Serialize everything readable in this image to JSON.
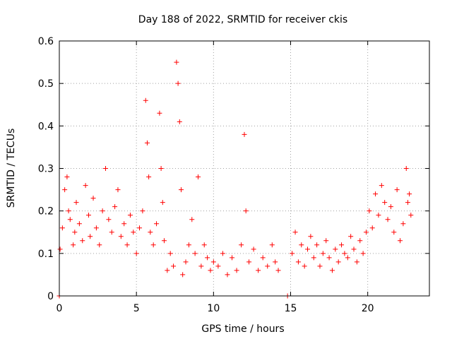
{
  "chart_data": {
    "type": "scatter",
    "title": "Day 188 of 2022, SRMTID for receiver ckis",
    "xlabel": "GPS time / hours",
    "ylabel": "SRMTID / TECUs",
    "xlim": [
      0,
      24
    ],
    "ylim": [
      0,
      0.6
    ],
    "grid": true,
    "marker": "+",
    "x_ticks": [
      0,
      5,
      10,
      15,
      20
    ],
    "x_tick_labels": [
      "0",
      "5",
      "10",
      "15",
      "20"
    ],
    "y_ticks": [
      0,
      0.1,
      0.2,
      0.3,
      0.4,
      0.5,
      0.6
    ],
    "y_tick_labels": [
      "0",
      "0.1",
      "0.2",
      "0.3",
      "0.4",
      "0.5",
      "0.6"
    ],
    "series": [
      {
        "name": "SRMTID",
        "color": "#ff0000",
        "x": [
          0.0,
          0.05,
          0.2,
          0.35,
          0.5,
          0.6,
          0.7,
          0.9,
          1.0,
          1.1,
          1.3,
          1.5,
          1.7,
          1.9,
          2.0,
          2.2,
          2.4,
          2.6,
          2.8,
          3.0,
          3.2,
          3.4,
          3.6,
          3.8,
          4.0,
          4.2,
          4.4,
          4.6,
          4.8,
          5.0,
          5.2,
          5.4,
          5.6,
          5.7,
          5.8,
          5.9,
          6.1,
          6.3,
          6.5,
          6.6,
          6.7,
          6.8,
          7.0,
          7.2,
          7.4,
          7.6,
          7.7,
          7.8,
          7.9,
          8.0,
          8.2,
          8.4,
          8.6,
          8.8,
          9.0,
          9.2,
          9.4,
          9.6,
          9.8,
          10.0,
          10.3,
          10.6,
          10.9,
          11.2,
          11.5,
          11.8,
          12.0,
          12.1,
          12.3,
          12.6,
          12.9,
          13.2,
          13.5,
          13.8,
          14.0,
          14.2,
          14.8,
          15.1,
          15.3,
          15.5,
          15.7,
          15.9,
          16.1,
          16.3,
          16.5,
          16.7,
          16.9,
          17.1,
          17.3,
          17.5,
          17.7,
          17.9,
          18.1,
          18.3,
          18.5,
          18.7,
          18.9,
          19.1,
          19.3,
          19.5,
          19.7,
          19.9,
          20.1,
          20.3,
          20.5,
          20.7,
          20.9,
          21.1,
          21.3,
          21.5,
          21.7,
          21.9,
          22.1,
          22.3,
          22.5,
          22.6,
          22.7,
          22.8
        ],
        "y": [
          0.0,
          0.11,
          0.16,
          0.25,
          0.28,
          0.2,
          0.18,
          0.12,
          0.15,
          0.22,
          0.17,
          0.13,
          0.26,
          0.19,
          0.14,
          0.23,
          0.16,
          0.12,
          0.2,
          0.3,
          0.18,
          0.15,
          0.21,
          0.25,
          0.14,
          0.17,
          0.12,
          0.19,
          0.15,
          0.1,
          0.16,
          0.2,
          0.46,
          0.36,
          0.28,
          0.15,
          0.12,
          0.17,
          0.43,
          0.3,
          0.22,
          0.13,
          0.06,
          0.1,
          0.07,
          0.55,
          0.5,
          0.41,
          0.25,
          0.05,
          0.08,
          0.12,
          0.18,
          0.1,
          0.28,
          0.07,
          0.12,
          0.09,
          0.06,
          0.08,
          0.07,
          0.1,
          0.05,
          0.09,
          0.06,
          0.12,
          0.38,
          0.2,
          0.08,
          0.11,
          0.06,
          0.09,
          0.07,
          0.12,
          0.08,
          0.06,
          0.0,
          0.1,
          0.15,
          0.08,
          0.12,
          0.07,
          0.11,
          0.14,
          0.09,
          0.12,
          0.07,
          0.1,
          0.13,
          0.09,
          0.06,
          0.11,
          0.08,
          0.12,
          0.1,
          0.09,
          0.14,
          0.11,
          0.08,
          0.13,
          0.1,
          0.15,
          0.2,
          0.16,
          0.24,
          0.19,
          0.26,
          0.22,
          0.18,
          0.21,
          0.15,
          0.25,
          0.13,
          0.17,
          0.3,
          0.22,
          0.24,
          0.19
        ]
      }
    ]
  }
}
